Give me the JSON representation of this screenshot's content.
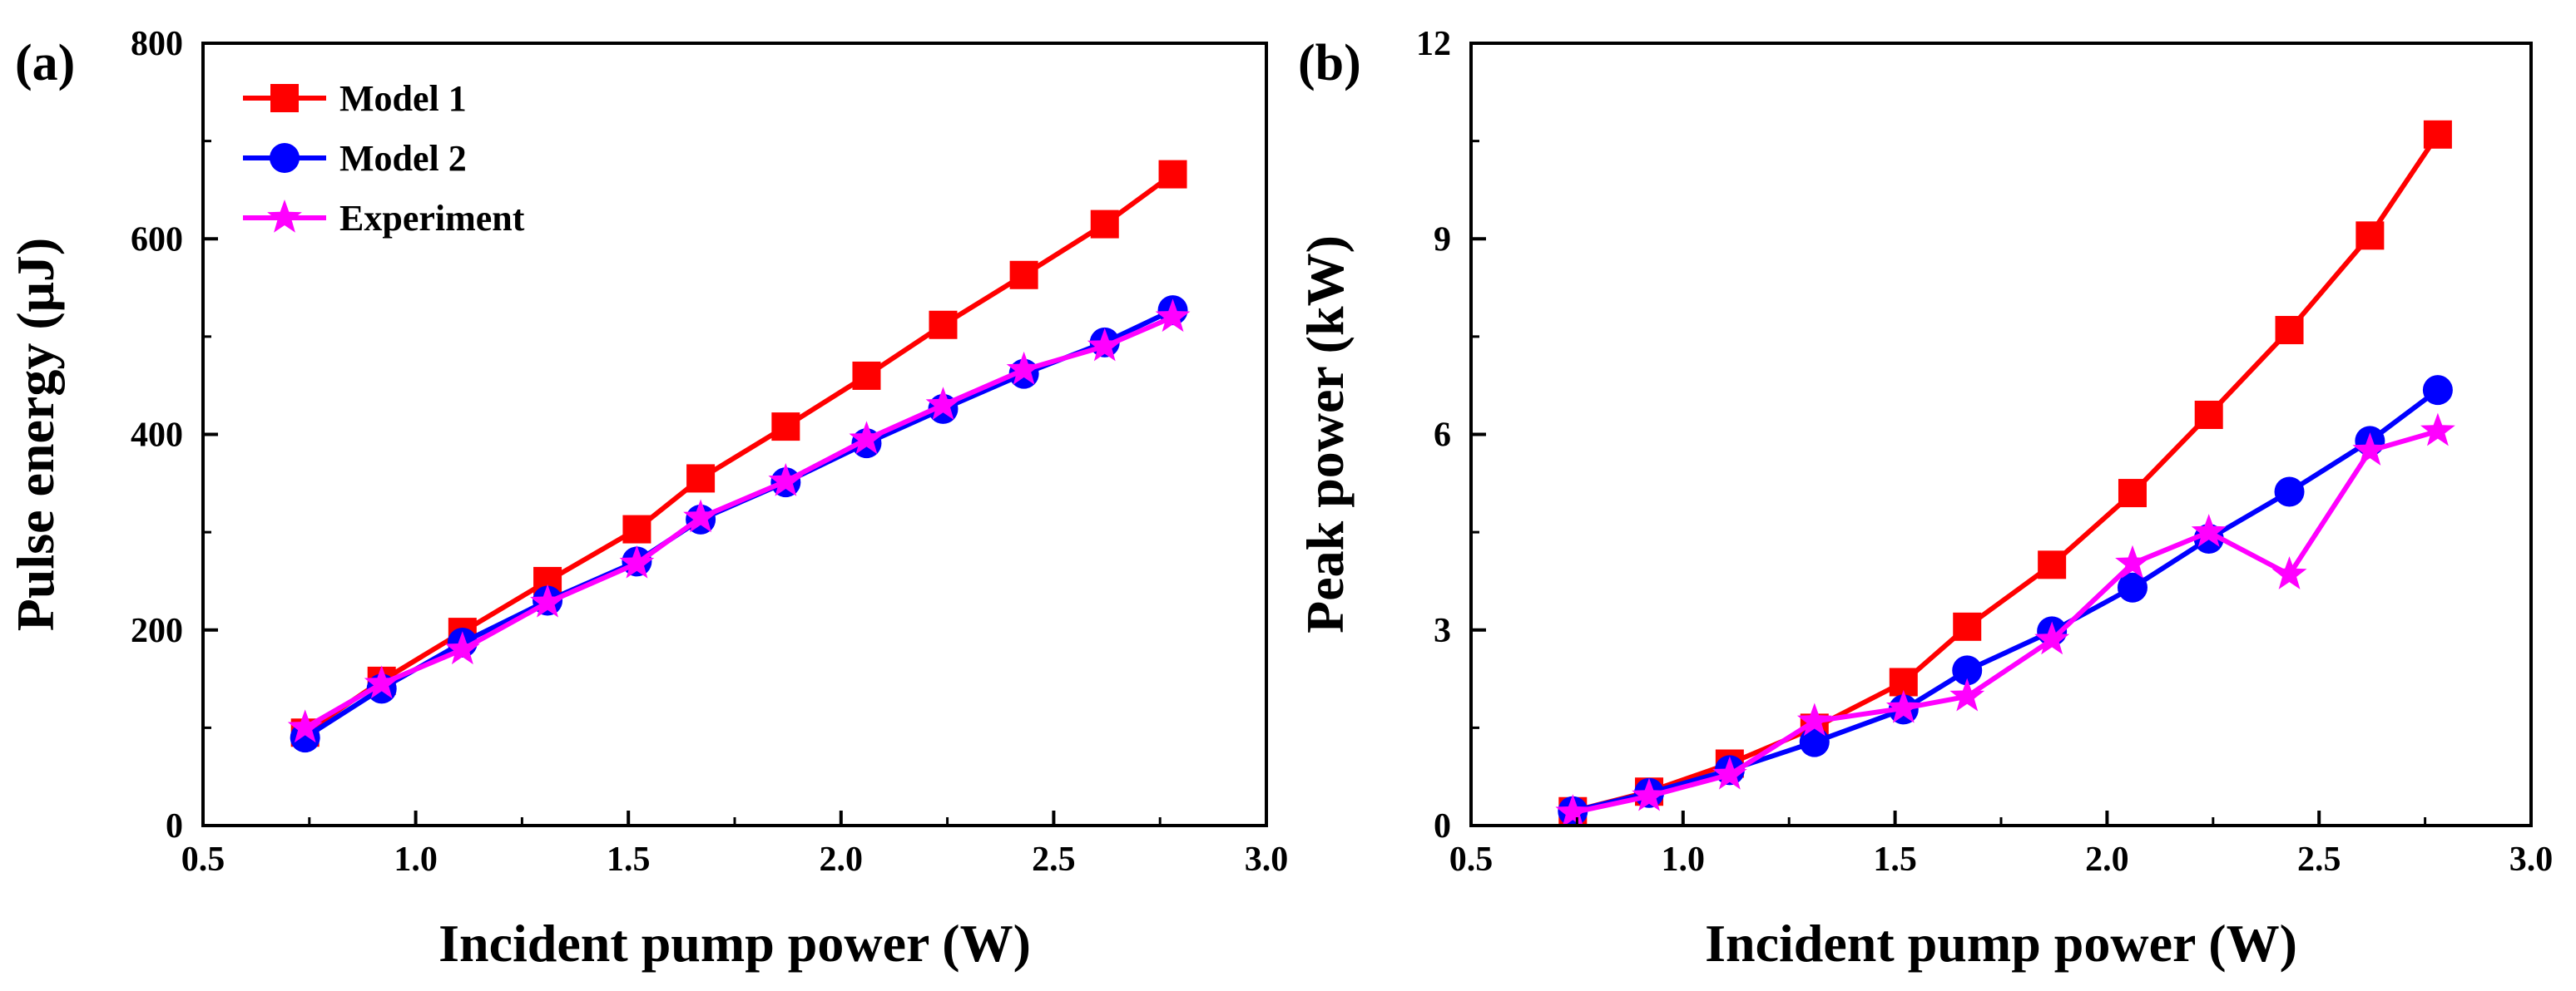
{
  "colors": {
    "model1": "#ff0000",
    "model2": "#0000ff",
    "experiment": "#ff00ff",
    "axes": "#000000"
  },
  "chart_data": [
    {
      "type": "line",
      "panel_label": "(a)",
      "xlabel": "Incident pump power (W)",
      "ylabel": "Pulse energy (μJ)",
      "xlim": [
        0.5,
        3.0
      ],
      "ylim": [
        0,
        800
      ],
      "xticks": [
        "0.5",
        "1.0",
        "1.5",
        "2.0",
        "2.5",
        "3.0"
      ],
      "yticks": [
        "0",
        "200",
        "400",
        "600",
        "800"
      ],
      "legend": "top-left",
      "grid": false,
      "x": [
        0.74,
        0.92,
        1.11,
        1.31,
        1.52,
        1.67,
        1.87,
        2.06,
        2.24,
        2.43,
        2.62,
        2.78
      ],
      "series": [
        {
          "name": "Model 1",
          "marker": "square",
          "color": "#ff0000",
          "values": [
            95,
            148,
            198,
            250,
            303,
            355,
            408,
            460,
            512,
            563,
            615,
            666
          ]
        },
        {
          "name": "Model 2",
          "marker": "circle",
          "color": "#0000ff",
          "values": [
            90,
            140,
            187,
            230,
            270,
            313,
            351,
            391,
            426,
            462,
            494,
            527
          ]
        },
        {
          "name": "Experiment",
          "marker": "star",
          "color": "#ff00ff",
          "values": [
            100,
            145,
            180,
            228,
            268,
            315,
            352,
            395,
            430,
            466,
            490,
            520
          ]
        }
      ]
    },
    {
      "type": "line",
      "panel_label": "(b)",
      "xlabel": "Incident pump power (W)",
      "ylabel": "Peak power (kW)",
      "xlim": [
        0.5,
        3.0
      ],
      "ylim": [
        0,
        12
      ],
      "xticks": [
        "0.5",
        "1.0",
        "1.5",
        "2.0",
        "2.5",
        "3.0"
      ],
      "yticks": [
        "0",
        "3",
        "6",
        "9",
        "12"
      ],
      "grid": false,
      "x": [
        0.74,
        0.92,
        1.11,
        1.31,
        1.52,
        1.67,
        1.87,
        2.06,
        2.24,
        2.43,
        2.62,
        2.78
      ],
      "series": [
        {
          "name": "Model 1",
          "marker": "square",
          "color": "#ff0000",
          "values": [
            0.22,
            0.52,
            0.95,
            1.5,
            2.2,
            3.05,
            4.0,
            5.1,
            6.3,
            7.6,
            9.05,
            10.6
          ]
        },
        {
          "name": "Model 2",
          "marker": "circle",
          "color": "#0000ff",
          "values": [
            0.22,
            0.5,
            0.85,
            1.28,
            1.78,
            2.38,
            2.98,
            3.65,
            4.4,
            5.12,
            5.9,
            6.68
          ]
        },
        {
          "name": "Experiment",
          "marker": "star",
          "color": "#ff00ff",
          "values": [
            0.2,
            0.45,
            0.78,
            1.6,
            1.8,
            1.98,
            2.85,
            4.02,
            4.5,
            3.85,
            5.75,
            6.05
          ]
        }
      ]
    }
  ]
}
